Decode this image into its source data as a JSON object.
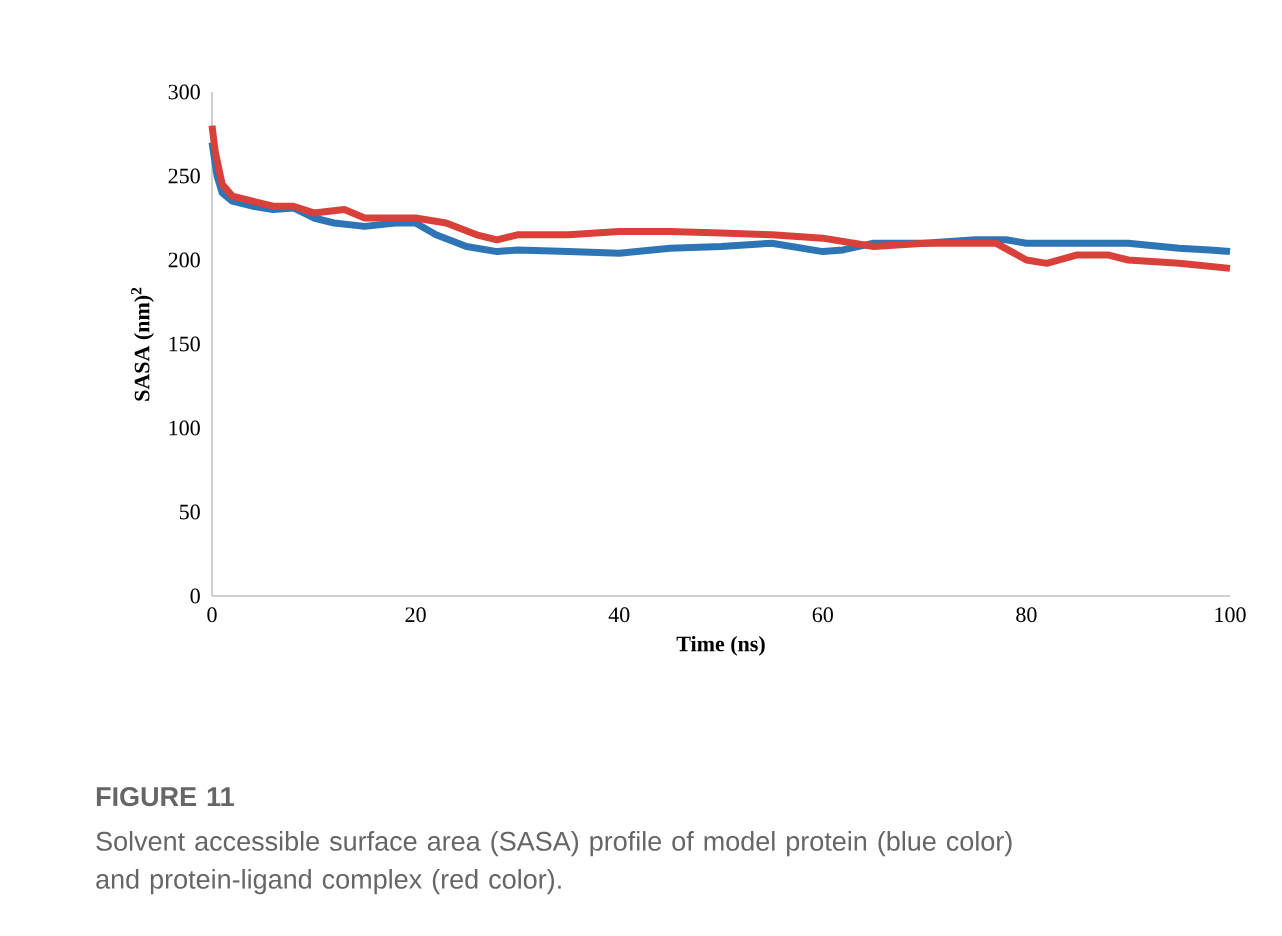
{
  "chart_data": {
    "type": "line",
    "xlabel": "Time (ns)",
    "ylabel": "SASA (nm)$^{2}$",
    "annotations": [
      "FIGURE 11",
      "Solvent accessible surface area (SASA) profile of model protein (blue color) and protein-ligand complex (red color)."
    ],
    "xlim": [
      0,
      100
    ],
    "ylim": [
      0,
      300
    ],
    "xticks": [
      0,
      20,
      40,
      60,
      80,
      100
    ],
    "yticks": [
      0,
      50,
      100,
      150,
      200,
      250,
      300
    ],
    "grid": false,
    "marker": "none",
    "line_style": "solid",
    "series": [
      {
        "color": "#2e75b6",
        "x": [
          0,
          0.5,
          1,
          2,
          4,
          6,
          8,
          10,
          12,
          15,
          18,
          20,
          22,
          25,
          28,
          30,
          35,
          40,
          45,
          50,
          55,
          60,
          62,
          65,
          70,
          75,
          78,
          80,
          85,
          90,
          95,
          98,
          100
        ],
        "values": [
          270,
          250,
          240,
          235,
          232,
          230,
          231,
          225,
          222,
          220,
          222,
          222,
          215,
          208,
          205,
          206,
          205,
          204,
          207,
          208,
          210,
          205,
          206,
          210,
          210,
          212,
          212,
          210,
          210,
          210,
          207,
          206,
          205
        ]
      },
      {
        "color": "#d9403a",
        "x": [
          0,
          0.3,
          1,
          2,
          4,
          6,
          8,
          10,
          13,
          15,
          18,
          20,
          23,
          26,
          28,
          30,
          35,
          40,
          45,
          50,
          55,
          60,
          65,
          70,
          75,
          77,
          80,
          82,
          85,
          88,
          90,
          95,
          100
        ],
        "values": [
          280,
          265,
          245,
          238,
          235,
          232,
          232,
          228,
          230,
          225,
          225,
          225,
          222,
          215,
          212,
          215,
          215,
          217,
          217,
          216,
          215,
          213,
          208,
          210,
          210,
          210,
          200,
          198,
          203,
          203,
          200,
          198,
          195
        ]
      }
    ]
  }
}
